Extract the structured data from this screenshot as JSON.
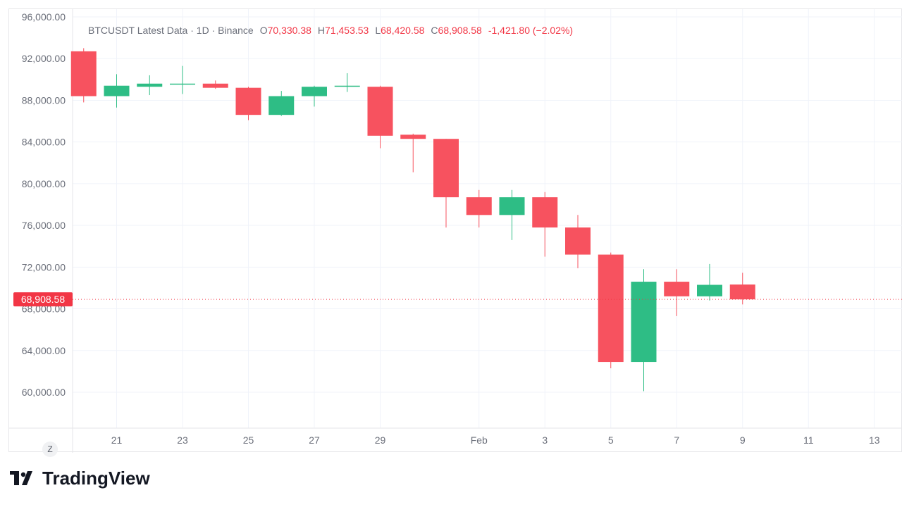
{
  "legend": {
    "symbol_line": "BTCUSDT Latest Data · 1D · Binance",
    "open_label": "O",
    "open": "70,330.38",
    "high_label": "H",
    "high": "71,453.53",
    "low_label": "L",
    "low": "68,420.58",
    "close_label": "C",
    "close": "68,908.58",
    "change": "-1,421.80 (−2.02%)"
  },
  "last_price_label": "68,908.58",
  "zoom_button_label": "Z",
  "brand": {
    "name": "TradingView"
  },
  "colors": {
    "up": "#2ebd85",
    "down": "#f7525f",
    "price_line": "#f23645",
    "grid": "#f0f3fa"
  },
  "chart_data": {
    "type": "candlestick",
    "title": "BTCUSDT Latest Data · 1D · Binance",
    "ylim": [
      57500,
      96000
    ],
    "y_ticks": [
      "96,000.00",
      "92,000.00",
      "88,000.00",
      "84,000.00",
      "80,000.00",
      "76,000.00",
      "72,000.00",
      "68,000.00",
      "64,000.00",
      "60,000.00"
    ],
    "x_ticks": [
      {
        "day": 21,
        "label": "21"
      },
      {
        "day": 23,
        "label": "23"
      },
      {
        "day": 25,
        "label": "25"
      },
      {
        "day": 27,
        "label": "27"
      },
      {
        "day": 29,
        "label": "29"
      },
      {
        "day": 32,
        "label": "Feb"
      },
      {
        "day": 34,
        "label": "3"
      },
      {
        "day": 36,
        "label": "5"
      },
      {
        "day": 38,
        "label": "7"
      },
      {
        "day": 40,
        "label": "9"
      },
      {
        "day": 42,
        "label": "11"
      },
      {
        "day": 44,
        "label": "13"
      }
    ],
    "x_range": [
      18.6,
      45.4
    ],
    "last_price": 68908.58,
    "candles": [
      {
        "day": 20,
        "open": 92700,
        "high": 93000,
        "low": 87800,
        "close": 88400
      },
      {
        "day": 21,
        "open": 88400,
        "high": 90500,
        "low": 87300,
        "close": 89400
      },
      {
        "day": 22,
        "open": 89300,
        "high": 90400,
        "low": 88500,
        "close": 89600
      },
      {
        "day": 23,
        "open": 89500,
        "high": 91300,
        "low": 88600,
        "close": 89600
      },
      {
        "day": 24,
        "open": 89600,
        "high": 89900,
        "low": 89100,
        "close": 89200
      },
      {
        "day": 25,
        "open": 89200,
        "high": 89300,
        "low": 86100,
        "close": 86600
      },
      {
        "day": 26,
        "open": 86600,
        "high": 88900,
        "low": 86500,
        "close": 88400
      },
      {
        "day": 27,
        "open": 88400,
        "high": 89400,
        "low": 87400,
        "close": 89300
      },
      {
        "day": 28,
        "open": 89300,
        "high": 90600,
        "low": 88800,
        "close": 89400
      },
      {
        "day": 29,
        "open": 89300,
        "high": 89400,
        "low": 83400,
        "close": 84600
      },
      {
        "day": 30,
        "open": 84700,
        "high": 84800,
        "low": 81100,
        "close": 84300
      },
      {
        "day": 31,
        "open": 84300,
        "high": 84300,
        "low": 75800,
        "close": 78700
      },
      {
        "day": 32,
        "open": 78700,
        "high": 79400,
        "low": 75800,
        "close": 77000
      },
      {
        "day": 33,
        "open": 77000,
        "high": 79400,
        "low": 74600,
        "close": 78700
      },
      {
        "day": 34,
        "open": 78700,
        "high": 79200,
        "low": 73000,
        "close": 75800
      },
      {
        "day": 35,
        "open": 75800,
        "high": 77000,
        "low": 71900,
        "close": 73200
      },
      {
        "day": 36,
        "open": 73200,
        "high": 73400,
        "low": 62300,
        "close": 62900
      },
      {
        "day": 37,
        "open": 62900,
        "high": 71800,
        "low": 60100,
        "close": 70600
      },
      {
        "day": 38,
        "open": 70600,
        "high": 71800,
        "low": 67300,
        "close": 69200
      },
      {
        "day": 39,
        "open": 69200,
        "high": 72300,
        "low": 68800,
        "close": 70300
      },
      {
        "day": 40,
        "open": 70330.38,
        "high": 71453.53,
        "low": 68420.58,
        "close": 68908.58
      }
    ]
  }
}
